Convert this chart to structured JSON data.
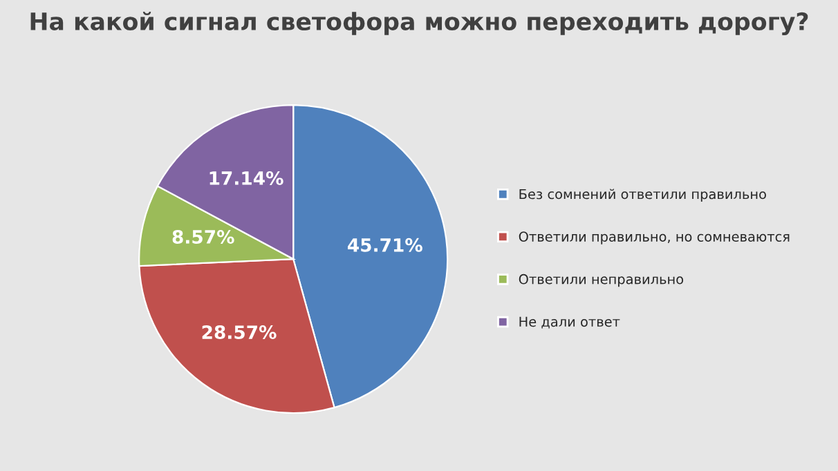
{
  "chart_data": {
    "type": "pie",
    "title": "На какой сигнал светофора можно переходить дорогу?",
    "categories": [
      "Без сомнений ответили правильно",
      "Ответили правильно, но сомневаются",
      "Ответили неправильно",
      "Не дали ответ"
    ],
    "values": [
      45.71,
      28.57,
      8.57,
      17.14
    ],
    "value_labels": [
      "45.71%",
      "28.57%",
      "8.57%",
      "17.14%"
    ],
    "colors": [
      "#4f81bd",
      "#c0504d",
      "#9bbb59",
      "#8064a2"
    ],
    "legend": "right"
  }
}
